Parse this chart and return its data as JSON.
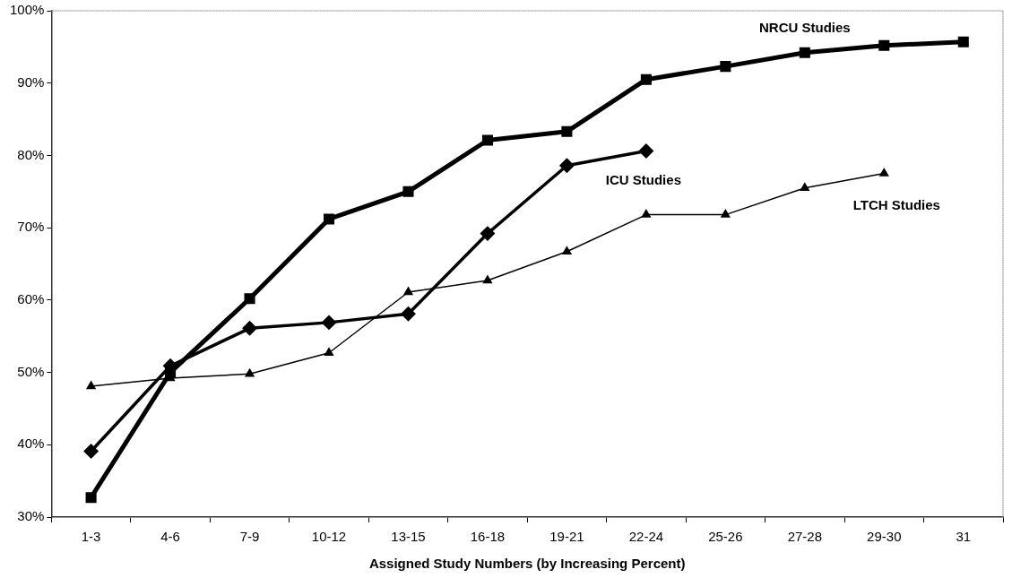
{
  "chart_data": {
    "type": "line",
    "xlabel": "Assigned Study Numbers (by Increasing Percent)",
    "categories": [
      "1-3",
      "4-6",
      "7-9",
      "10-12",
      "13-15",
      "16-18",
      "19-21",
      "22-24",
      "25-26",
      "27-28",
      "29-30",
      "31"
    ],
    "ylim": [
      30,
      100
    ],
    "yticks": [
      {
        "value": 30,
        "label": "30%"
      },
      {
        "value": 40,
        "label": "40%"
      },
      {
        "value": 50,
        "label": "50%"
      },
      {
        "value": 60,
        "label": "60%"
      },
      {
        "value": 70,
        "label": "70%"
      },
      {
        "value": 80,
        "label": "80%"
      },
      {
        "value": 90,
        "label": "90%"
      },
      {
        "value": 100,
        "label": "100%"
      }
    ],
    "grid": false,
    "legend": false,
    "series": [
      {
        "name": "NRCU Studies",
        "color": "#000000",
        "marker": "square",
        "values": [
          32.7,
          50,
          60.2,
          71.2,
          75,
          82.1,
          83.3,
          90.5,
          92.3,
          94.2,
          95.2,
          95.7
        ]
      },
      {
        "name": "ICU Studies",
        "color": "#000000",
        "marker": "diamond",
        "values": [
          39.1,
          50.9,
          56.1,
          56.9,
          58.1,
          69.2,
          78.6,
          80.6,
          null,
          null,
          null,
          null
        ]
      },
      {
        "name": "LTCH Studies",
        "color": "#000000",
        "marker": "triangle",
        "values": [
          48.1,
          49.2,
          49.8,
          52.7,
          61.1,
          62.7,
          66.7,
          71.8,
          71.8,
          75.5,
          77.5,
          null
        ]
      }
    ]
  }
}
